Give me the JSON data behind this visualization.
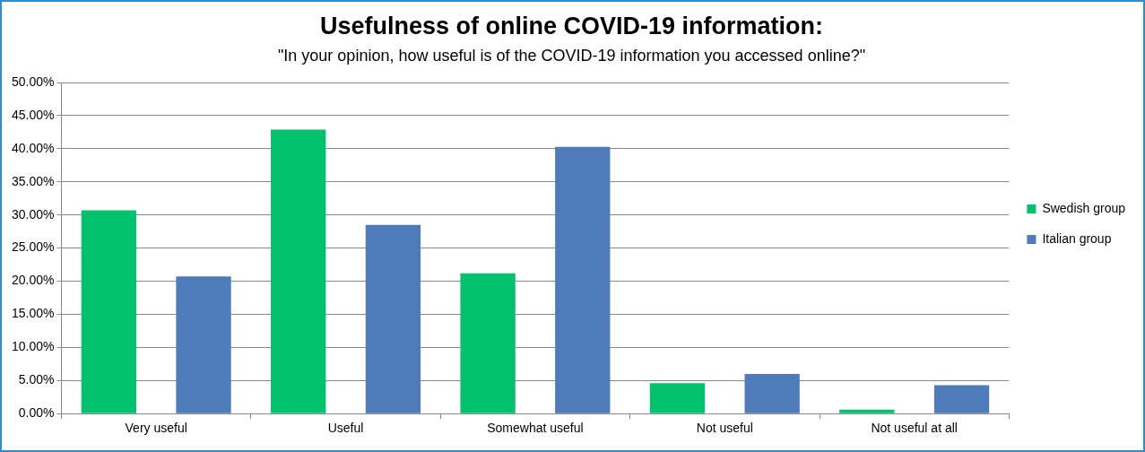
{
  "chart_data": {
    "type": "bar",
    "title": "Usefulness of online COVID-19 information:",
    "subtitle": "\"In your opinion, how useful is of the COVID-19 information you accessed online?\"",
    "categories": [
      "Very useful",
      "Useful",
      "Somewhat useful",
      "Not useful",
      "Not useful at all"
    ],
    "series": [
      {
        "name": "Swedish group",
        "color": "#00c26e",
        "values": [
          30.7,
          42.9,
          21.2,
          4.6,
          0.6
        ]
      },
      {
        "name": "Italian group",
        "color": "#4f7bba",
        "values": [
          20.7,
          28.5,
          40.3,
          6.0,
          4.3
        ]
      }
    ],
    "ylim": [
      0,
      50
    ],
    "yticks": [
      {
        "value": 0,
        "label": "0.00%"
      },
      {
        "value": 5,
        "label": "5.00%"
      },
      {
        "value": 10,
        "label": "10.00%"
      },
      {
        "value": 15,
        "label": "15.00%"
      },
      {
        "value": 20,
        "label": "20.00%"
      },
      {
        "value": 25,
        "label": "25.00%"
      },
      {
        "value": 30,
        "label": "30.00%"
      },
      {
        "value": 35,
        "label": "35.00%"
      },
      {
        "value": 40,
        "label": "40.00%"
      },
      {
        "value": 45,
        "label": "45.00%"
      },
      {
        "value": 50,
        "label": "50.00%"
      }
    ],
    "grid": "y",
    "legend": "right"
  }
}
